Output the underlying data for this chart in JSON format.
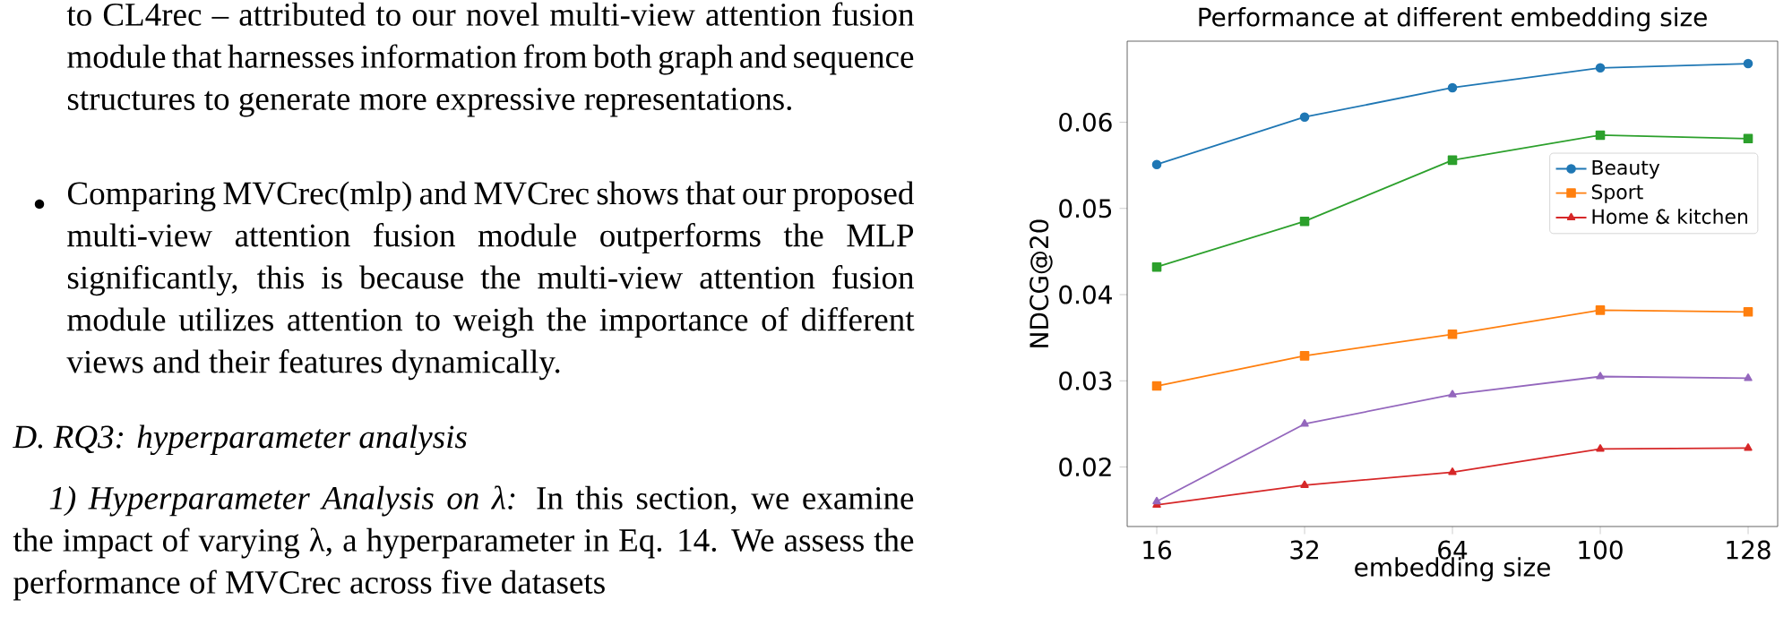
{
  "chart_data": {
    "type": "line",
    "title": "Performance at different embedding size",
    "xlabel": "embedding size",
    "ylabel": "NDCG@20",
    "categories": [
      "16",
      "32",
      "64",
      "100",
      "128"
    ],
    "series": [
      {
        "name": "Beauty",
        "color": "#1f77b4",
        "marker": "circle",
        "values": [
          0.0551,
          0.0606,
          0.064,
          0.0663,
          0.0668
        ]
      },
      {
        "name": "Sport",
        "color": "#ff7f0e",
        "marker": "square",
        "values": [
          0.0294,
          0.0329,
          0.0354,
          0.0382,
          0.038
        ]
      },
      {
        "color": "#2ca02c",
        "marker": "square",
        "values": [
          0.0432,
          0.0485,
          0.0556,
          0.0585,
          0.0581
        ]
      },
      {
        "name": "Home & kitchen",
        "color": "#d62728",
        "marker": "triangle",
        "values": [
          0.0156,
          0.0179,
          0.0194,
          0.0221,
          0.0222
        ]
      },
      {
        "color": "#9467bd",
        "marker": "triangle",
        "values": [
          0.016,
          0.025,
          0.0284,
          0.0305,
          0.0303
        ]
      }
    ],
    "ylim": [
      0.0131,
      0.0694
    ],
    "yticks": [
      0.02,
      0.03,
      0.04,
      0.05,
      0.06
    ],
    "grid": false,
    "legend": "right",
    "line_style": "solid",
    "annotations": [
      "to CL4rec – attributed to our novel multi-view attention fusion module that harnesses information from both graph and sequence structures to generate more expressive representations.",
      "Comparing MVCrec(mlp) and MVCrec shows that our proposed multi-view attention fusion module outperforms the MLP significantly, this is because the multi-view attention fusion module utilizes attention to weigh the importance of different views and their features dynamically.",
      "D. RQ3: hyperparameter analysis",
      "*1) Hyperparameter Analysis on λ:* In this section, we examine the impact of varying λ, a hyperparameter in Eq. 14. We assess the performance of MVCrec across five datasets"
    ]
  }
}
